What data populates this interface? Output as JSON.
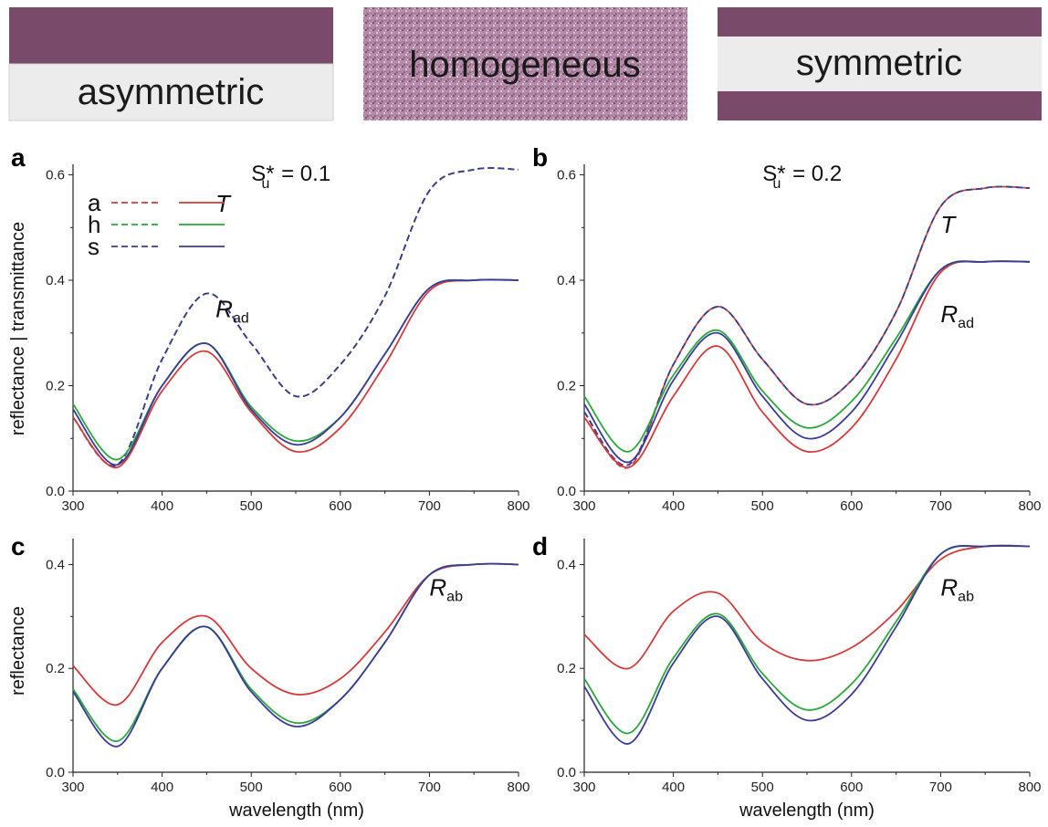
{
  "banners": {
    "asymmetric": "asymmetric",
    "homogeneous": "homogeneous",
    "symmetric": "symmetric",
    "pigment_color": "#7a4a6a",
    "clear_color": "#ececec"
  },
  "legend": {
    "entries": [
      {
        "key": "a",
        "color": "#d63a3a"
      },
      {
        "key": "h",
        "color": "#2aa83a"
      },
      {
        "key": "s",
        "color": "#3a3a9a"
      }
    ]
  },
  "axes": {
    "ylabel_top": "reflectance | transmittance",
    "ylabel_bottom": "reflectance",
    "xlabel": "wavelength  (nm)"
  },
  "chart_data": [
    {
      "panel": "a",
      "type": "line",
      "annotation": {
        "text": "S*",
        "sub": "u",
        "value": " = 0.1"
      },
      "xlim": [
        300,
        800
      ],
      "ylim": [
        0,
        0.62
      ],
      "xticks": [
        300,
        400,
        500,
        600,
        700,
        800
      ],
      "yticks": [
        "0.0",
        "0.2",
        "0.4",
        "0.6"
      ],
      "labels": [
        {
          "base": "T",
          "sub": "",
          "x": 460,
          "y": 0.53
        },
        {
          "base": "R",
          "sub": "ad",
          "x": 460,
          "y": 0.33
        }
      ],
      "series": [
        {
          "key": "a",
          "style": "dash",
          "x": [
            300,
            350,
            400,
            450,
            500,
            550,
            600,
            650,
            700,
            750,
            800
          ],
          "y": [
            0.14,
            0.05,
            0.25,
            0.375,
            0.28,
            0.18,
            0.24,
            0.37,
            0.57,
            0.61,
            0.61
          ]
        },
        {
          "key": "h",
          "style": "dash",
          "x": [
            300,
            350,
            400,
            450,
            500,
            550,
            600,
            650,
            700,
            750,
            800
          ],
          "y": [
            0.14,
            0.05,
            0.25,
            0.375,
            0.28,
            0.18,
            0.24,
            0.37,
            0.57,
            0.61,
            0.61
          ]
        },
        {
          "key": "s",
          "style": "dash",
          "x": [
            300,
            350,
            400,
            450,
            500,
            550,
            600,
            650,
            700,
            750,
            800
          ],
          "y": [
            0.14,
            0.05,
            0.25,
            0.375,
            0.28,
            0.18,
            0.24,
            0.37,
            0.57,
            0.61,
            0.61
          ]
        },
        {
          "key": "a",
          "style": "solid",
          "x": [
            300,
            350,
            400,
            450,
            500,
            550,
            600,
            650,
            700,
            750,
            800
          ],
          "y": [
            0.14,
            0.045,
            0.19,
            0.265,
            0.15,
            0.075,
            0.12,
            0.24,
            0.38,
            0.4,
            0.4
          ]
        },
        {
          "key": "h",
          "style": "solid",
          "x": [
            300,
            350,
            400,
            450,
            500,
            550,
            600,
            650,
            700,
            750,
            800
          ],
          "y": [
            0.165,
            0.06,
            0.2,
            0.28,
            0.16,
            0.095,
            0.14,
            0.26,
            0.385,
            0.4,
            0.4
          ]
        },
        {
          "key": "s",
          "style": "solid",
          "x": [
            300,
            350,
            400,
            450,
            500,
            550,
            600,
            650,
            700,
            750,
            800
          ],
          "y": [
            0.155,
            0.05,
            0.2,
            0.28,
            0.155,
            0.088,
            0.14,
            0.26,
            0.385,
            0.4,
            0.4
          ]
        }
      ]
    },
    {
      "panel": "b",
      "type": "line",
      "annotation": {
        "text": "S*",
        "sub": "u",
        "value": " = 0.2"
      },
      "xlim": [
        300,
        800
      ],
      "ylim": [
        0,
        0.62
      ],
      "xticks": [
        300,
        400,
        500,
        600,
        700,
        800
      ],
      "yticks": [
        "0.0",
        "0.2",
        "0.4",
        "0.6"
      ],
      "labels": [
        {
          "base": "T",
          "sub": "",
          "x": 700,
          "y": 0.49
        },
        {
          "base": "R",
          "sub": "ad",
          "x": 700,
          "y": 0.32
        }
      ],
      "series": [
        {
          "key": "a",
          "style": "dash",
          "x": [
            300,
            350,
            400,
            450,
            500,
            550,
            600,
            650,
            700,
            750,
            800
          ],
          "y": [
            0.15,
            0.045,
            0.24,
            0.35,
            0.25,
            0.165,
            0.21,
            0.34,
            0.54,
            0.575,
            0.575
          ]
        },
        {
          "key": "h",
          "style": "dash",
          "x": [
            300,
            350,
            400,
            450,
            500,
            550,
            600,
            650,
            700,
            750,
            800
          ],
          "y": [
            0.15,
            0.05,
            0.24,
            0.35,
            0.25,
            0.165,
            0.21,
            0.34,
            0.54,
            0.575,
            0.575
          ]
        },
        {
          "key": "s",
          "style": "dash",
          "x": [
            300,
            350,
            400,
            450,
            500,
            550,
            600,
            650,
            700,
            750,
            800
          ],
          "y": [
            0.15,
            0.05,
            0.24,
            0.35,
            0.25,
            0.165,
            0.21,
            0.34,
            0.54,
            0.575,
            0.575
          ]
        },
        {
          "key": "a",
          "style": "solid",
          "x": [
            300,
            350,
            400,
            450,
            500,
            550,
            600,
            650,
            700,
            750,
            800
          ],
          "y": [
            0.14,
            0.045,
            0.18,
            0.275,
            0.15,
            0.075,
            0.12,
            0.25,
            0.415,
            0.435,
            0.435
          ]
        },
        {
          "key": "h",
          "style": "solid",
          "x": [
            300,
            350,
            400,
            450,
            500,
            550,
            600,
            650,
            700,
            750,
            800
          ],
          "y": [
            0.18,
            0.075,
            0.22,
            0.305,
            0.19,
            0.12,
            0.17,
            0.29,
            0.42,
            0.435,
            0.435
          ]
        },
        {
          "key": "s",
          "style": "solid",
          "x": [
            300,
            350,
            400,
            450,
            500,
            550,
            600,
            650,
            700,
            750,
            800
          ],
          "y": [
            0.165,
            0.055,
            0.21,
            0.3,
            0.18,
            0.1,
            0.15,
            0.28,
            0.42,
            0.435,
            0.435
          ]
        }
      ]
    },
    {
      "panel": "c",
      "type": "line",
      "xlim": [
        300,
        800
      ],
      "ylim": [
        0,
        0.45
      ],
      "xticks": [
        300,
        400,
        500,
        600,
        700,
        800
      ],
      "yticks": [
        "0.0",
        "0.2",
        "0.4"
      ],
      "labels": [
        {
          "base": "R",
          "sub": "ab",
          "x": 700,
          "y": 0.34
        }
      ],
      "series": [
        {
          "key": "a",
          "style": "solid",
          "x": [
            300,
            350,
            400,
            450,
            500,
            550,
            600,
            650,
            700,
            750,
            800
          ],
          "y": [
            0.205,
            0.13,
            0.25,
            0.3,
            0.2,
            0.15,
            0.18,
            0.27,
            0.38,
            0.4,
            0.4
          ]
        },
        {
          "key": "h",
          "style": "solid",
          "x": [
            300,
            350,
            400,
            450,
            500,
            550,
            600,
            650,
            700,
            750,
            800
          ],
          "y": [
            0.16,
            0.06,
            0.2,
            0.28,
            0.16,
            0.095,
            0.14,
            0.25,
            0.38,
            0.4,
            0.4
          ]
        },
        {
          "key": "s",
          "style": "solid",
          "x": [
            300,
            350,
            400,
            450,
            500,
            550,
            600,
            650,
            700,
            750,
            800
          ],
          "y": [
            0.155,
            0.05,
            0.2,
            0.28,
            0.155,
            0.088,
            0.14,
            0.25,
            0.38,
            0.4,
            0.4
          ]
        }
      ]
    },
    {
      "panel": "d",
      "type": "line",
      "xlim": [
        300,
        800
      ],
      "ylim": [
        0,
        0.45
      ],
      "xticks": [
        300,
        400,
        500,
        600,
        700,
        800
      ],
      "yticks": [
        "0.0",
        "0.2",
        "0.4"
      ],
      "labels": [
        {
          "base": "R",
          "sub": "ab",
          "x": 700,
          "y": 0.34
        }
      ],
      "series": [
        {
          "key": "a",
          "style": "solid",
          "x": [
            300,
            350,
            400,
            450,
            500,
            550,
            600,
            650,
            700,
            750,
            800
          ],
          "y": [
            0.265,
            0.2,
            0.31,
            0.345,
            0.25,
            0.215,
            0.24,
            0.31,
            0.41,
            0.435,
            0.435
          ]
        },
        {
          "key": "h",
          "style": "solid",
          "x": [
            300,
            350,
            400,
            450,
            500,
            550,
            600,
            650,
            700,
            750,
            800
          ],
          "y": [
            0.18,
            0.075,
            0.22,
            0.305,
            0.19,
            0.12,
            0.17,
            0.29,
            0.42,
            0.435,
            0.435
          ]
        },
        {
          "key": "s",
          "style": "solid",
          "x": [
            300,
            350,
            400,
            450,
            500,
            550,
            600,
            650,
            700,
            750,
            800
          ],
          "y": [
            0.165,
            0.055,
            0.21,
            0.3,
            0.18,
            0.1,
            0.15,
            0.28,
            0.42,
            0.435,
            0.435
          ]
        }
      ]
    }
  ]
}
